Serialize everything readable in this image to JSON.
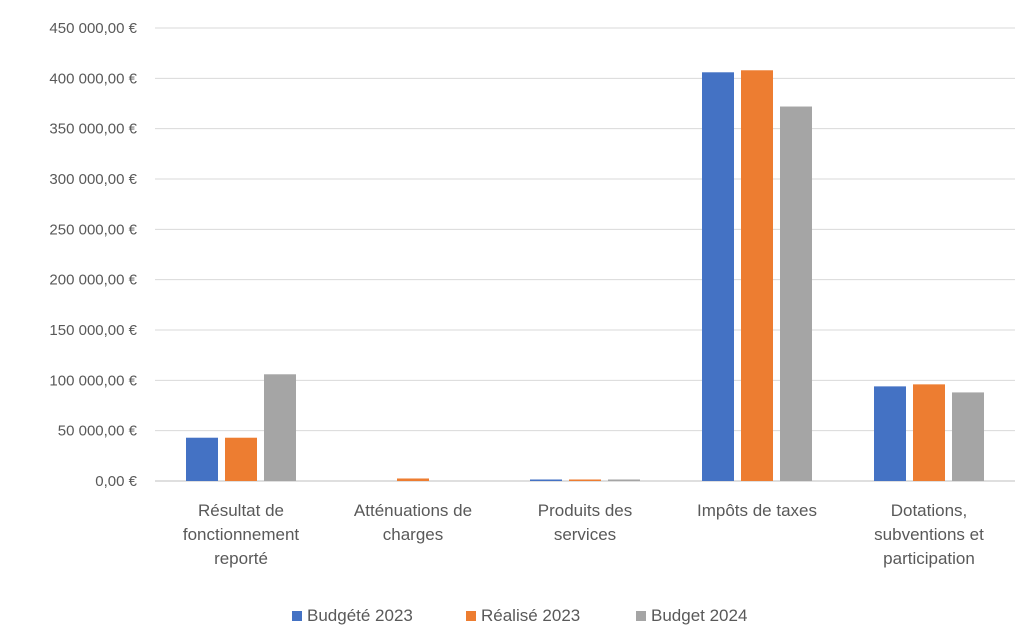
{
  "chart_data": {
    "type": "bar",
    "title": "",
    "xlabel": "",
    "ylabel": "",
    "ylim": [
      0,
      450000
    ],
    "y_tick_values": [
      0,
      50000,
      100000,
      150000,
      200000,
      250000,
      300000,
      350000,
      400000,
      450000
    ],
    "y_tick_labels": [
      "0,00 €",
      "50 000,00 €",
      "100 000,00 €",
      "150 000,00 €",
      "200 000,00 €",
      "250 000,00 €",
      "300 000,00 €",
      "350 000,00 €",
      "400 000,00 €",
      "450 000,00 €"
    ],
    "categories": [
      "Résultat de fonctionnement reporté",
      "Atténuations de charges",
      "Produits des services",
      "Impôts de taxes",
      "Dotations, subventions et participation"
    ],
    "category_label_lines": [
      [
        "Résultat de",
        "fonctionnement",
        "reporté"
      ],
      [
        "Atténuations de",
        "charges"
      ],
      [
        "Produits des",
        "services"
      ],
      [
        "Impôts de taxes"
      ],
      [
        "Dotations,",
        "subventions et",
        "participation"
      ]
    ],
    "series": [
      {
        "name": "Budgété 2023",
        "color": "#4472C4",
        "values": [
          43000,
          0,
          1500,
          406000,
          94000
        ]
      },
      {
        "name": "Réalisé 2023",
        "color": "#ED7D31",
        "values": [
          43000,
          2500,
          1500,
          408000,
          96000
        ]
      },
      {
        "name": "Budget 2024",
        "color": "#A5A5A5",
        "values": [
          106000,
          0,
          1500,
          372000,
          88000
        ]
      }
    ],
    "grid": true,
    "legend_position": "bottom"
  }
}
